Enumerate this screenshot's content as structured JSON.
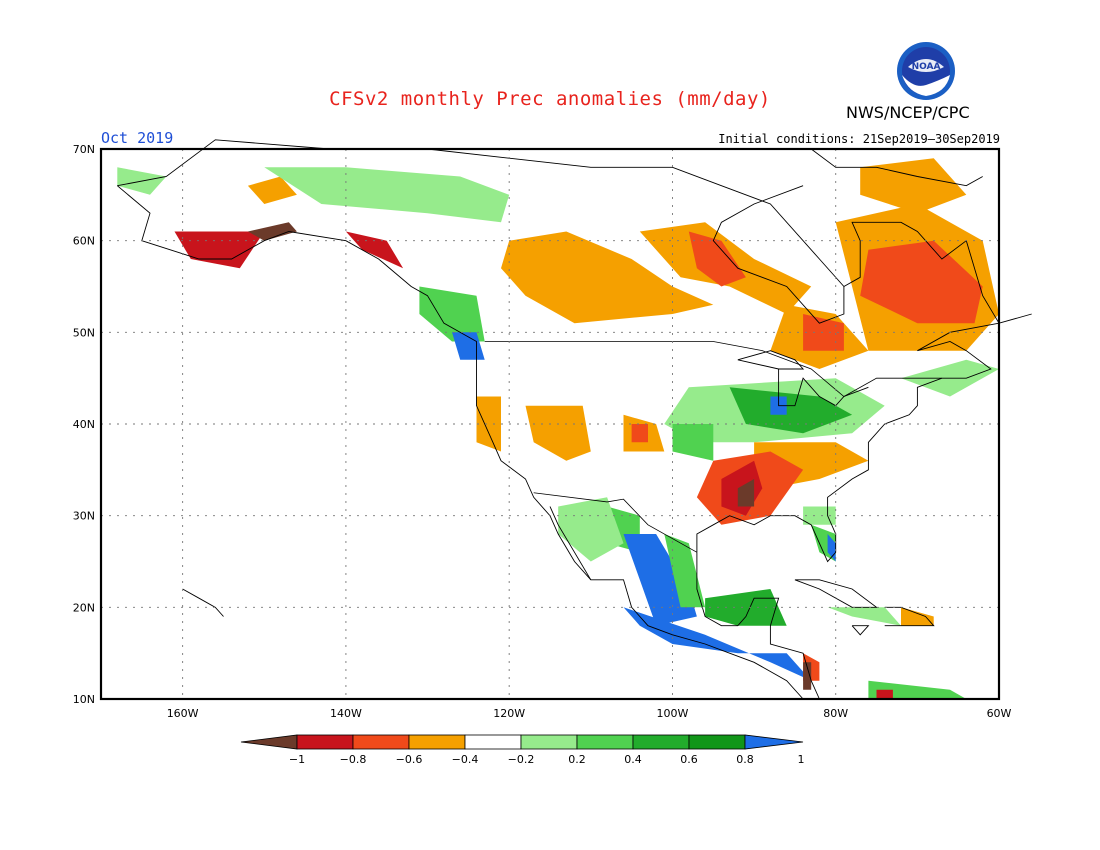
{
  "header": {
    "title": "CFSv2 monthly Prec anomalies (mm/day)",
    "org": "NWS/NCEP/CPC",
    "period": "Oct 2019",
    "initial_conditions": "Initial conditions: 21Sep2019–30Sep2019",
    "logo_text": "NOAA"
  },
  "map": {
    "lat_labels": [
      "70N",
      "60N",
      "50N",
      "40N",
      "30N",
      "20N",
      "10N"
    ],
    "lon_labels": [
      "160W",
      "140W",
      "120W",
      "100W",
      "80W",
      "60W"
    ],
    "lat_range": [
      10,
      70
    ],
    "lon_range": [
      -170,
      -60
    ],
    "grid": "dotted"
  },
  "legend": {
    "ticks": [
      "−1",
      "−0.8",
      "−0.6",
      "−0.4",
      "−0.2",
      "0.2",
      "0.4",
      "0.6",
      "0.8",
      "1"
    ],
    "colors": [
      "#6b3a2a",
      "#c8141c",
      "#f04a1a",
      "#f5a000",
      "#ffffff",
      "#96eb8c",
      "#50d250",
      "#22ac2c",
      "#119619",
      "#1e6ee6"
    ]
  },
  "anomaly_colors": {
    "dry_extreme": "#6b3a2a",
    "dry_strong": "#c8141c",
    "dry_mod": "#f04a1a",
    "dry_weak": "#f5a000",
    "wet_weak": "#96eb8c",
    "wet_mod": "#50d250",
    "wet_strong": "#22ac2c",
    "wet_very": "#119619",
    "wet_extreme": "#1e6ee6"
  }
}
